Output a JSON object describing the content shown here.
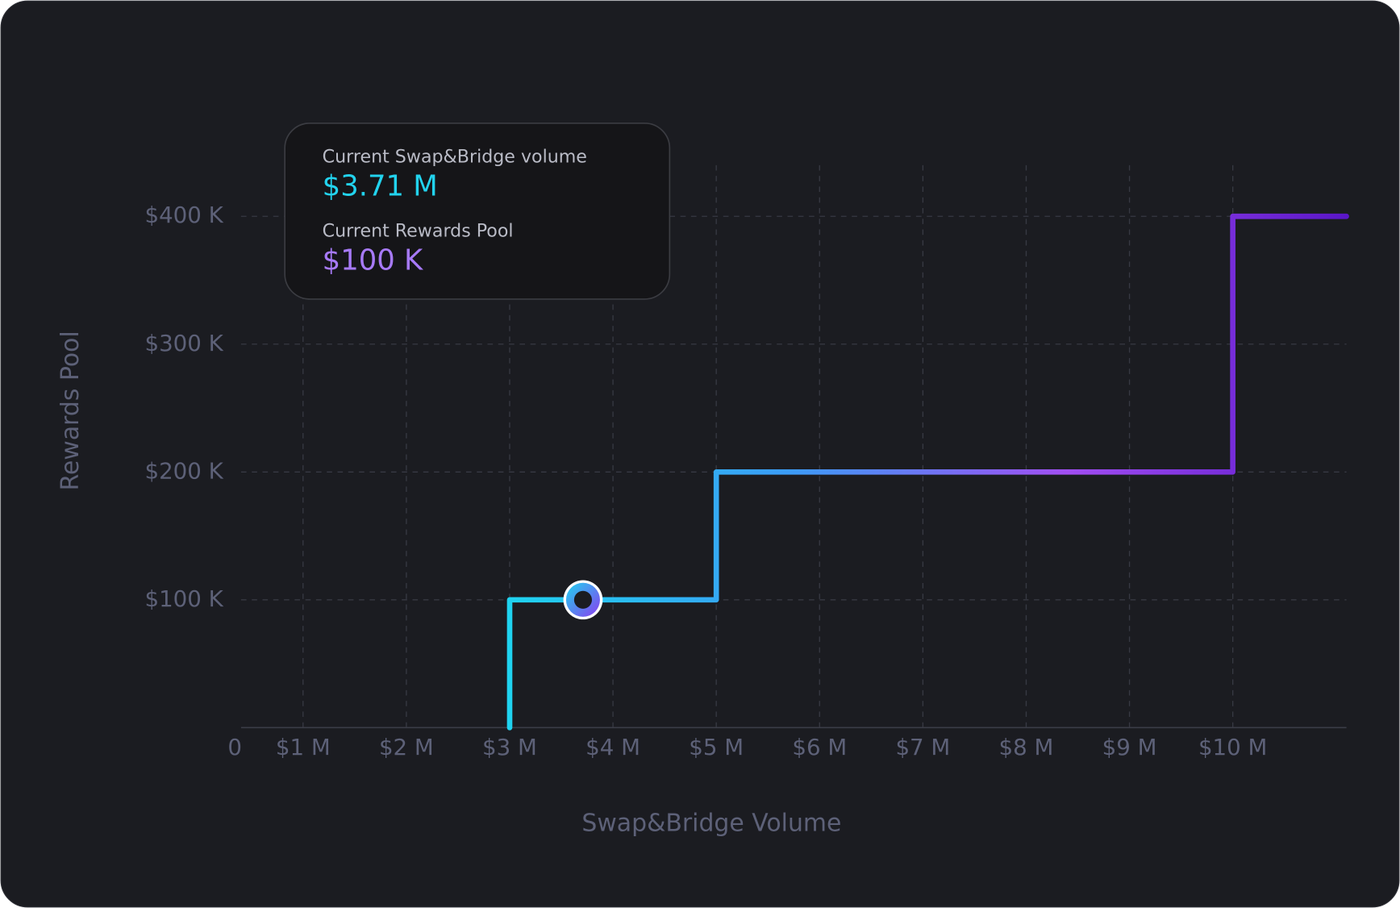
{
  "chart_data": {
    "type": "step-line",
    "x_label": "Swap&Bridge Volume",
    "y_label": "Rewards Pool",
    "origin_label": "0",
    "xlim": [
      400000,
      11100000
    ],
    "ylim": [
      0,
      440000
    ],
    "xticks": [
      {
        "value": 1000000,
        "label": "$1 M"
      },
      {
        "value": 2000000,
        "label": "$2 M"
      },
      {
        "value": 3000000,
        "label": "$3 M"
      },
      {
        "value": 4000000,
        "label": "$4 M"
      },
      {
        "value": 5000000,
        "label": "$5 M"
      },
      {
        "value": 6000000,
        "label": "$6 M"
      },
      {
        "value": 7000000,
        "label": "$7 M"
      },
      {
        "value": 8000000,
        "label": "$8 M"
      },
      {
        "value": 9000000,
        "label": "$9 M"
      },
      {
        "value": 10000000,
        "label": "$10 M"
      }
    ],
    "yticks": [
      {
        "value": 100000,
        "label": "$100 K"
      },
      {
        "value": 200000,
        "label": "$200 K"
      },
      {
        "value": 300000,
        "label": "$300 K"
      },
      {
        "value": 400000,
        "label": "$400 K"
      }
    ],
    "grid": true,
    "series": [
      {
        "x": [
          3000000,
          3000000,
          5000000,
          5000000,
          10000000,
          10000000,
          11100000
        ],
        "values": [
          0,
          100000,
          100000,
          200000,
          200000,
          400000,
          400000
        ],
        "gradient": [
          "#1fd3f0",
          "#3b9cf6",
          "#a14ef2",
          "#5a16c8"
        ]
      }
    ],
    "marker": {
      "x": 3710000,
      "y": 100000,
      "x_label": "$3.71 M",
      "y_label": "$100 K"
    },
    "tooltip": {
      "x_title": "Current Swap&Bridge volume",
      "y_title": "Current Rewards Pool"
    }
  }
}
